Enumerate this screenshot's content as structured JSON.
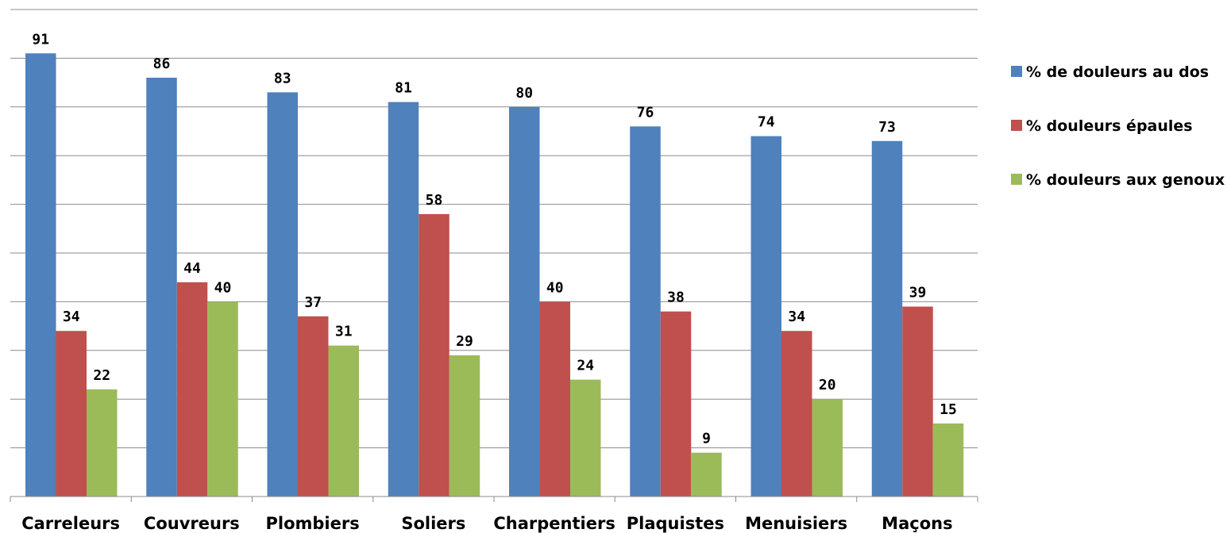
{
  "chart_data": {
    "type": "bar",
    "categories": [
      "Carreleurs",
      "Couvreurs",
      "Plombiers",
      "Soliers",
      "Charpentiers",
      "Plaquistes",
      "Menuisiers",
      "Maçons"
    ],
    "series": [
      {
        "name": "% de douleurs au dos",
        "color": "#4F81BD",
        "values": [
          91,
          86,
          83,
          81,
          80,
          76,
          74,
          73
        ]
      },
      {
        "name": "% douleurs épaules",
        "color": "#C0504D",
        "values": [
          34,
          44,
          37,
          58,
          40,
          38,
          34,
          39
        ]
      },
      {
        "name": "% douleurs aux genoux",
        "color": "#9BBB59",
        "values": [
          22,
          40,
          31,
          29,
          24,
          9,
          20,
          15
        ]
      }
    ],
    "ylim": [
      0,
      100
    ],
    "y_gridline_step": 10,
    "grid": true,
    "legend_position": "right",
    "data_labels": true
  }
}
